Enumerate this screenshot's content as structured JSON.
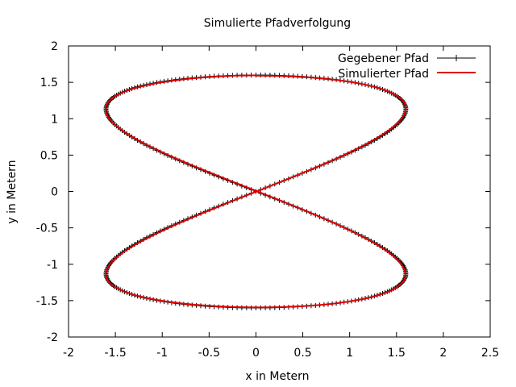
{
  "colors": {
    "background": "#ffffff",
    "axis": "#000000",
    "given_path": "#000000",
    "simulated_path": "#dd0000"
  },
  "chart_data": {
    "type": "line",
    "title": "Simulierte Pfadverfolgung",
    "xlabel": "x in Metern",
    "ylabel": "y in Metern",
    "xlim": [
      -2,
      2.5
    ],
    "ylim": [
      -2,
      2
    ],
    "xticks": [
      "-2",
      "-1.5",
      "-1",
      "-0.5",
      "0",
      "0.5",
      "1",
      "1.5",
      "2",
      "2.5"
    ],
    "yticks": [
      "-2",
      "-1.5",
      "-1",
      "-0.5",
      "0",
      "0.5",
      "1",
      "1.5",
      "2"
    ],
    "grid": false,
    "legend_position": "top-right",
    "series": [
      {
        "name": "Gegebener Pfad",
        "color": "#000000",
        "marker": "plus",
        "curve": "lissajous",
        "x_amplitude": 1.6,
        "y_amplitude": 1.6,
        "point_count": 400
      },
      {
        "name": "Simulierter Pfad",
        "color": "#dd0000",
        "marker": "none",
        "curve": "lissajous",
        "x_amplitude": 1.6,
        "y_amplitude": 1.6,
        "point_count": 400
      }
    ]
  }
}
